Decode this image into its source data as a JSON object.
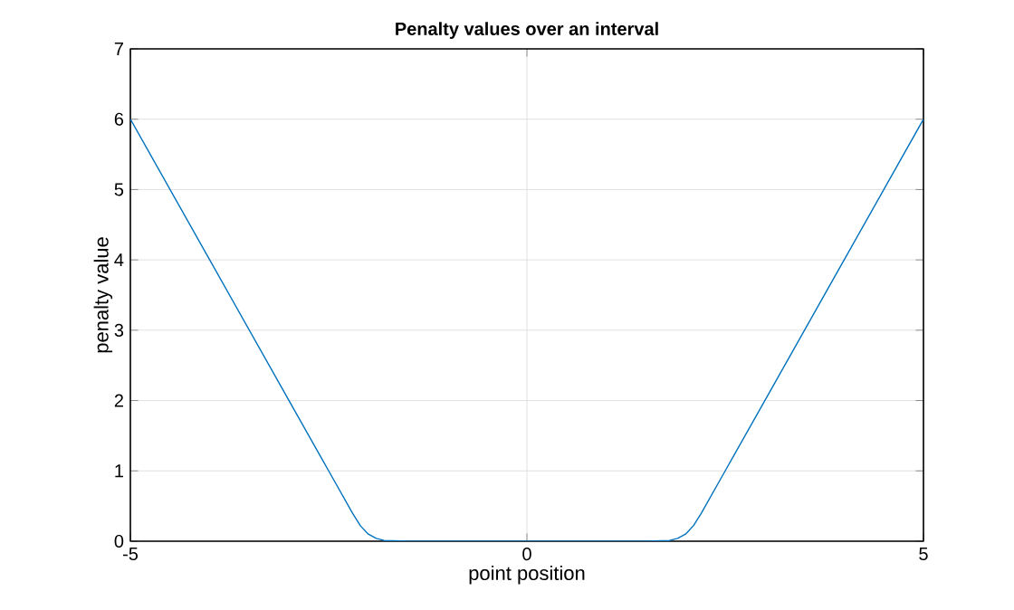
{
  "chart_data": {
    "type": "line",
    "title": "Penalty values over an interval",
    "xlabel": "point position",
    "ylabel": "penalty value",
    "x": [
      -5,
      -4,
      -3,
      -2.5,
      -2.2,
      -2.1,
      -2.0,
      -1.9,
      -1.8,
      -1.5,
      0,
      1.5,
      1.8,
      1.9,
      2.0,
      2.1,
      2.2,
      2.5,
      3,
      4,
      5
    ],
    "series": [
      {
        "color": "#0072bd",
        "values": [
          6,
          4,
          2,
          1,
          0.4,
          0.22,
          0.1,
          0.04,
          0.01,
          0,
          0,
          0,
          0.01,
          0.04,
          0.1,
          0.22,
          0.4,
          1,
          2,
          4,
          6
        ]
      }
    ],
    "xlim": [
      -5,
      5
    ],
    "ylim": [
      0,
      7
    ],
    "xticks": [
      -5,
      0,
      5
    ],
    "yticks": [
      0,
      1,
      2,
      3,
      4,
      5,
      6,
      7
    ],
    "grid": true,
    "marker": "none",
    "line_style": "solid"
  }
}
